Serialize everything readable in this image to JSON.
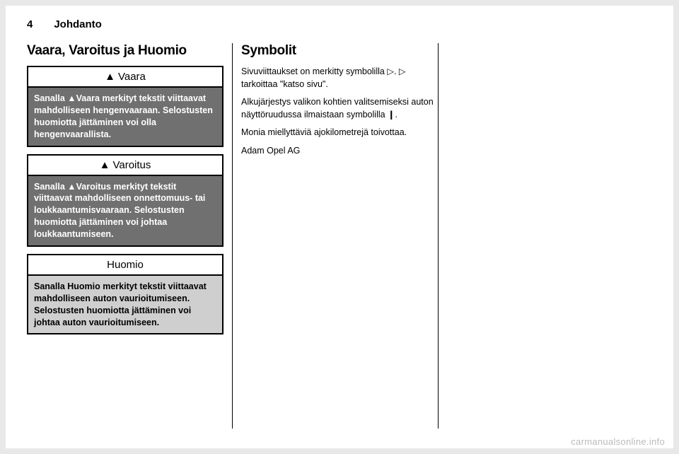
{
  "header": {
    "page_number": "4",
    "section": "Johdanto"
  },
  "col1": {
    "heading": "Vaara, Varoitus ja Huomio",
    "box_vaara": {
      "icon": "▲",
      "label": "Vaara",
      "body_prefix": "Sanalla ",
      "body_icon": "▲",
      "body_iconword": "Vaara",
      "body_rest": " merkityt tekstit viittaavat mahdolliseen hengen­vaaraan. Selostusten huomiotta jättäminen voi olla hengenvaaral­lista."
    },
    "box_varoitus": {
      "icon": "▲",
      "label": "Varoitus",
      "body_prefix": "Sanalla ",
      "body_icon": "▲",
      "body_iconword": "Varoitus",
      "body_rest": " merkityt tekstit viittaavat mahdolliseen onnetto­muus- tai loukkaantumisvaaraan. Selostusten huomiotta jättäminen voi johtaa loukkaantumiseen."
    },
    "box_huomio": {
      "label": "Huomio",
      "body": "Sanalla Huomio merkityt tekstit viittaavat mahdolliseen auton vau­rioitumiseen. Selostusten huo­miotta jättäminen voi johtaa auton vaurioitumiseen."
    }
  },
  "col2": {
    "heading": "Symbolit",
    "p1_a": "Sivuviittaukset on merkitty symbolilla ",
    "p1_sym1": "▷",
    "p1_b": ". ",
    "p1_sym2": "▷",
    "p1_c": " tarkoittaa \"katso sivu\".",
    "p2_a": "Alkujärjestys valikon kohtien valitse­miseksi auton näyttöruudussa ilmais­taan symbolilla ",
    "p2_sym": "❙",
    "p2_b": ".",
    "p3": "Monia miellyttäviä ajokilometrejä toi­vottaa.",
    "p4": "Adam Opel AG"
  },
  "watermark": "carmanualsonline.info",
  "colors": {
    "page_bg": "#ffffff",
    "outer_bg": "#e8e8e8",
    "box_body_dark": "#707070",
    "box_body_light": "#cfcfcf",
    "watermark": "rgba(0,0,0,0.28)"
  }
}
